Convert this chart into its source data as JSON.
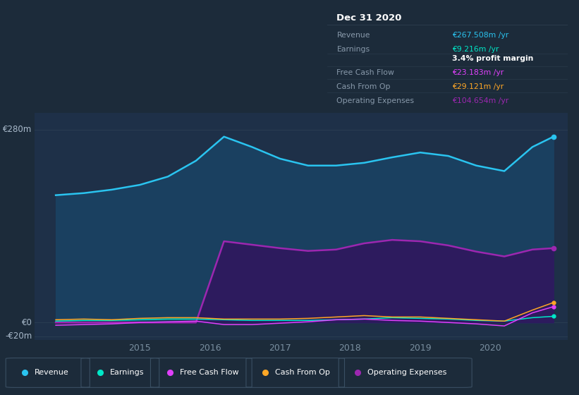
{
  "bg_color": "#1c2b3a",
  "plot_bg_color": "#1e3048",
  "panel_bg": "#111922",
  "grid_color": "#2a3d52",
  "ylim": [
    -25,
    305
  ],
  "xticks": [
    2015,
    2016,
    2017,
    2018,
    2019,
    2020
  ],
  "years": [
    2013.8,
    2014.2,
    2014.6,
    2015.0,
    2015.4,
    2015.8,
    2016.2,
    2016.6,
    2017.0,
    2017.4,
    2017.8,
    2018.2,
    2018.6,
    2019.0,
    2019.4,
    2019.8,
    2020.2,
    2020.6,
    2020.9
  ],
  "revenue": [
    185,
    188,
    193,
    200,
    212,
    235,
    270,
    255,
    238,
    228,
    228,
    232,
    240,
    247,
    242,
    228,
    220,
    255,
    270
  ],
  "opex": [
    0,
    0,
    0,
    0,
    0,
    0,
    118,
    113,
    108,
    104,
    106,
    115,
    120,
    118,
    112,
    103,
    96,
    106,
    108
  ],
  "earnings": [
    2,
    3,
    3,
    4,
    5,
    5,
    4,
    3,
    3,
    3,
    4,
    5,
    7,
    6,
    5,
    3,
    2,
    7,
    9
  ],
  "fcf": [
    -4,
    -3,
    -2,
    0,
    1,
    2,
    -3,
    -3,
    -1,
    1,
    4,
    5,
    3,
    2,
    0,
    -2,
    -5,
    14,
    23
  ],
  "cash_op": [
    4,
    5,
    4,
    6,
    7,
    7,
    5,
    5,
    5,
    6,
    8,
    10,
    8,
    8,
    6,
    4,
    2,
    18,
    29
  ],
  "revenue_color": "#2ac4f0",
  "earnings_color": "#00e8c8",
  "fcf_color": "#e040fb",
  "cash_op_color": "#ffa726",
  "opex_color": "#9c27b0",
  "revenue_fill": "#1a4060",
  "opex_fill": "#2d1b5e",
  "ylabel_top": "€280m",
  "ylabel_zero": "€0",
  "ylabel_bottom": "-€20m",
  "legend_items": [
    "Revenue",
    "Earnings",
    "Free Cash Flow",
    "Cash From Op",
    "Operating Expenses"
  ],
  "legend_colors": [
    "#2ac4f0",
    "#00e8c8",
    "#e040fb",
    "#ffa726",
    "#9c27b0"
  ],
  "table_title": "Dec 31 2020",
  "table_rows": [
    {
      "label": "Revenue",
      "value": "€267.508m /yr",
      "value_color": "#2ac4f0",
      "divider_after": true
    },
    {
      "label": "Earnings",
      "value": "€9.216m /yr",
      "value_color": "#00e8c8",
      "divider_after": false
    },
    {
      "label": "",
      "value": "3.4% profit margin",
      "value_color": "#ffffff",
      "divider_after": true,
      "bold": true
    },
    {
      "label": "Free Cash Flow",
      "value": "€23.183m /yr",
      "value_color": "#e040fb",
      "divider_after": true
    },
    {
      "label": "Cash From Op",
      "value": "€29.121m /yr",
      "value_color": "#ffa726",
      "divider_after": true
    },
    {
      "label": "Operating Expenses",
      "value": "€104.654m /yr",
      "value_color": "#9c27b0",
      "divider_after": false
    }
  ]
}
